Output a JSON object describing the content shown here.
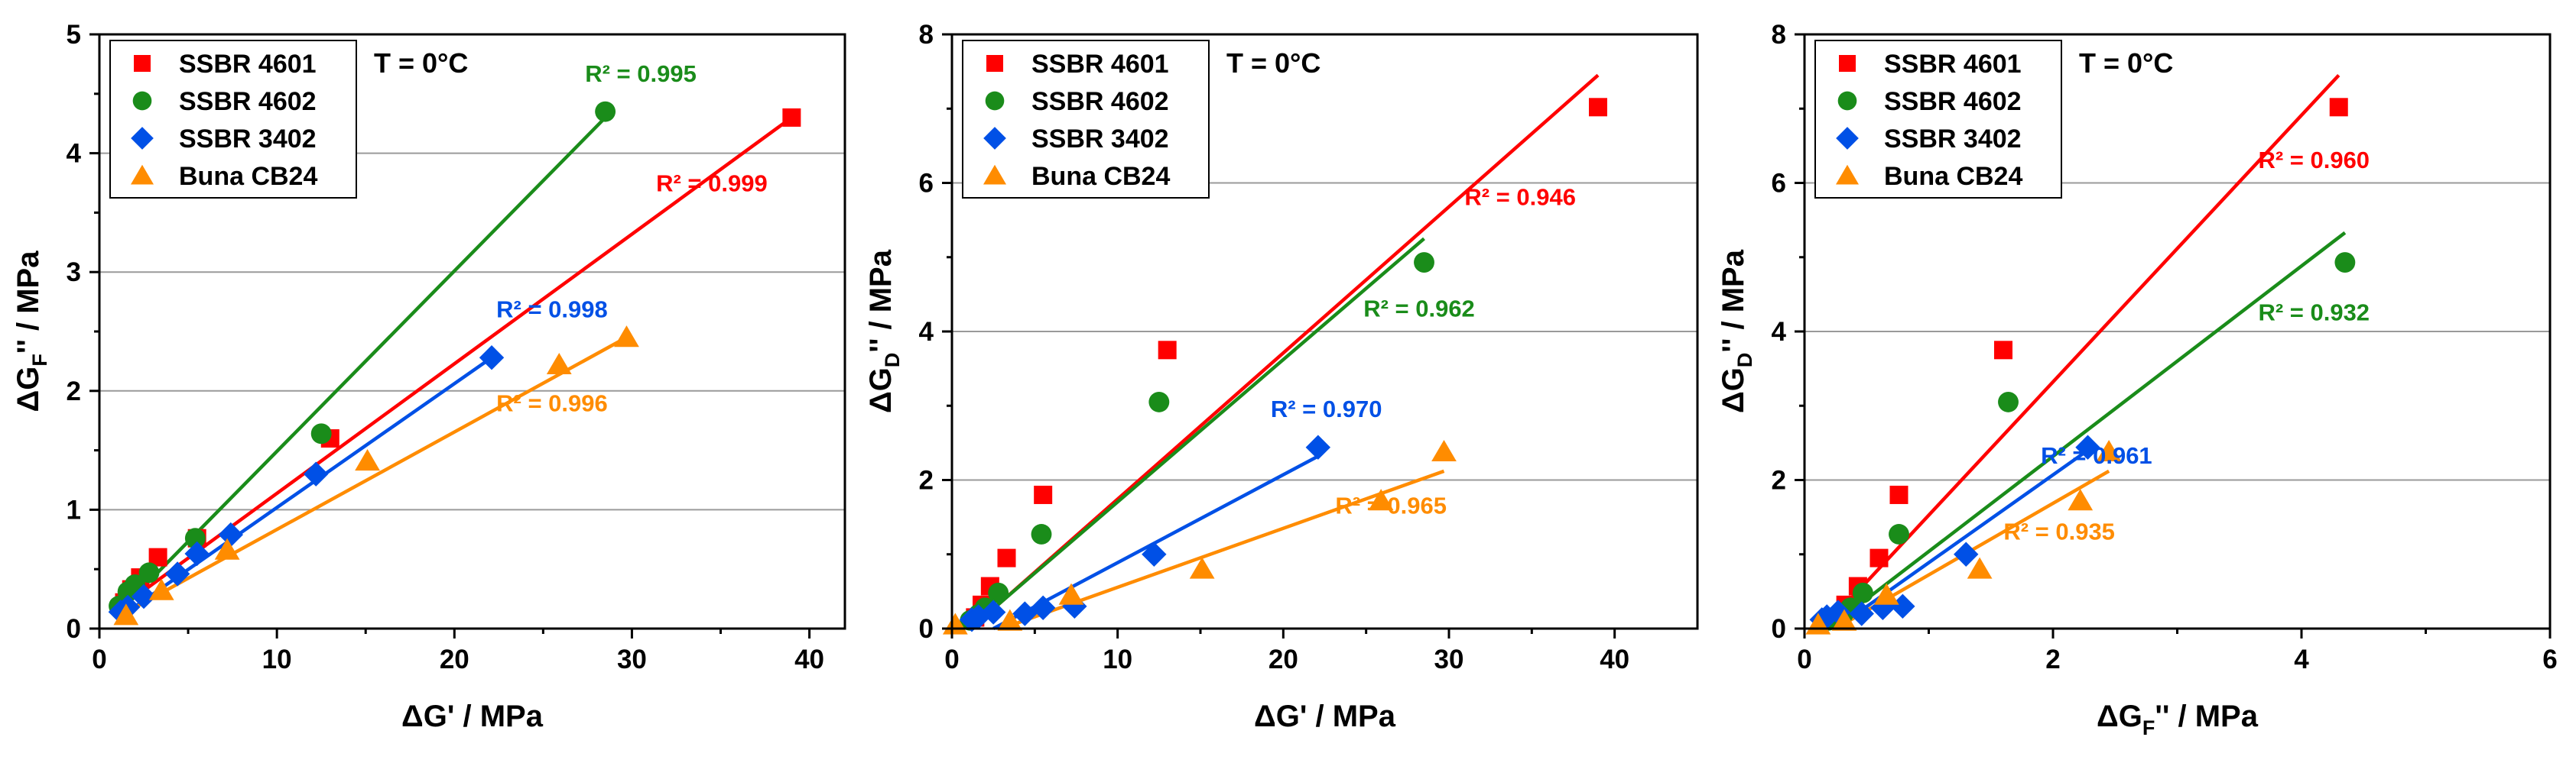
{
  "chart_data": [
    {
      "type": "scatter",
      "title": "",
      "xlabel": "ΔG' / MPa",
      "ylabel": {
        "base": "ΔG",
        "sub": "F",
        "tail": "'' / MPa"
      },
      "xlim": [
        0,
        42
      ],
      "ylim": [
        0,
        5
      ],
      "xticks": [
        0,
        10,
        20,
        30,
        40
      ],
      "yticks": [
        0,
        1,
        2,
        3,
        4,
        5
      ],
      "grid": "horizontal",
      "legend_position": "top-left",
      "annotation": "T = 0°C",
      "series": [
        {
          "name": "SSBR 4601",
          "color": "#ff0000",
          "marker": "square",
          "x": [
            1.4,
            1.8,
            2.3,
            3.3,
            5.5,
            13,
            39
          ],
          "y": [
            0.22,
            0.33,
            0.43,
            0.6,
            0.76,
            1.6,
            4.3
          ],
          "fit": [
            [
              1.4,
              0.2
            ],
            [
              39,
              4.3
            ]
          ],
          "r2": "R² = 0.999"
        },
        {
          "name": "SSBR 4602",
          "color": "#1a8c1a",
          "marker": "circle",
          "x": [
            1.1,
            1.6,
            2.0,
            2.8,
            5.4,
            12.5,
            28.5
          ],
          "y": [
            0.19,
            0.31,
            0.37,
            0.47,
            0.76,
            1.64,
            4.35
          ],
          "fit": [
            [
              1.1,
              0.14
            ],
            [
              28.5,
              4.3
            ]
          ],
          "r2": "R² = 0.995"
        },
        {
          "name": "SSBR 3402",
          "color": "#0050e6",
          "marker": "diamond",
          "x": [
            1.2,
            1.6,
            2.5,
            4.4,
            5.5,
            7.4,
            12.2,
            22.1
          ],
          "y": [
            0.14,
            0.18,
            0.27,
            0.46,
            0.63,
            0.79,
            1.3,
            2.28
          ],
          "fit": [
            [
              1.0,
              0.08
            ],
            [
              22.1,
              2.28
            ]
          ],
          "r2": "R² = 0.998"
        },
        {
          "name": "Buna CB24",
          "color": "#ff8c00",
          "marker": "triangle",
          "x": [
            1.5,
            3.5,
            7.2,
            15.1,
            25.9,
            29.7
          ],
          "y": [
            0.11,
            0.32,
            0.66,
            1.41,
            2.22,
            2.45
          ],
          "fit": [
            [
              1.3,
              0.12
            ],
            [
              29.7,
              2.45
            ]
          ],
          "r2": "R² = 0.996"
        }
      ],
      "r2_labels": [
        {
          "series": 1,
          "x": 30.5,
          "y": 4.6
        },
        {
          "series": 0,
          "x": 34.5,
          "y": 3.68
        },
        {
          "series": 2,
          "x": 25.5,
          "y": 2.62
        },
        {
          "series": 3,
          "x": 25.5,
          "y": 1.83
        }
      ]
    },
    {
      "type": "scatter",
      "title": "",
      "xlabel": "ΔG' / MPa",
      "ylabel": {
        "base": "ΔG",
        "sub": "D",
        "tail": "'' / MPa"
      },
      "xlim": [
        0,
        45
      ],
      "ylim": [
        0,
        8
      ],
      "xticks": [
        0,
        10,
        20,
        30,
        40
      ],
      "yticks": [
        0,
        2,
        4,
        6,
        8
      ],
      "grid": "horizontal",
      "legend_position": "top-left",
      "annotation": "T = 0°C",
      "series": [
        {
          "name": "SSBR 4601",
          "color": "#ff0000",
          "marker": "square",
          "x": [
            1.4,
            1.8,
            2.3,
            3.3,
            5.5,
            13,
            39
          ],
          "y": [
            0.15,
            0.32,
            0.57,
            0.95,
            1.8,
            3.75,
            7.02
          ],
          "fit": [
            [
              1.4,
              0.05
            ],
            [
              39,
              7.45
            ]
          ],
          "r2": "R² = 0.946"
        },
        {
          "name": "SSBR 4602",
          "color": "#1a8c1a",
          "marker": "circle",
          "x": [
            1.1,
            1.6,
            2.0,
            2.8,
            5.4,
            12.5,
            28.5
          ],
          "y": [
            0.11,
            0.19,
            0.28,
            0.48,
            1.27,
            3.05,
            4.93
          ],
          "fit": [
            [
              1.1,
              0.0
            ],
            [
              28.5,
              5.25
            ]
          ],
          "r2": "R² = 0.962"
        },
        {
          "name": "SSBR 3402",
          "color": "#0050e6",
          "marker": "diamond",
          "x": [
            1.2,
            1.6,
            2.5,
            4.4,
            5.5,
            7.4,
            12.2,
            22.1
          ],
          "y": [
            0.12,
            0.16,
            0.22,
            0.2,
            0.28,
            0.3,
            1.0,
            2.44
          ],
          "fit": [
            [
              2.5,
              0.0
            ],
            [
              22.1,
              2.32
            ]
          ],
          "r2": "R² = 0.970"
        },
        {
          "name": "Buna CB24",
          "color": "#ff8c00",
          "marker": "triangle",
          "x": [
            0.2,
            3.5,
            7.2,
            15.1,
            25.9,
            29.7
          ],
          "y": [
            0.05,
            0.1,
            0.45,
            0.8,
            1.72,
            2.38
          ],
          "fit": [
            [
              3.0,
              0.0
            ],
            [
              29.7,
              2.12
            ]
          ],
          "r2": "R² = 0.965"
        }
      ],
      "r2_labels": [
        {
          "series": 0,
          "x": 34.3,
          "y": 5.7
        },
        {
          "series": 1,
          "x": 28.2,
          "y": 4.2
        },
        {
          "series": 2,
          "x": 22.6,
          "y": 2.85
        },
        {
          "series": 3,
          "x": 26.5,
          "y": 1.55
        }
      ]
    },
    {
      "type": "scatter",
      "title": "",
      "xlabel": {
        "base": "ΔG",
        "sub": "F",
        "tail": "'' / MPa"
      },
      "ylabel": {
        "base": "ΔG",
        "sub": "D",
        "tail": "'' / MPa"
      },
      "xlim": [
        0,
        6
      ],
      "ylim": [
        0,
        8
      ],
      "xticks": [
        0,
        2,
        4,
        6
      ],
      "yticks": [
        0,
        2,
        4,
        6,
        8
      ],
      "grid": "horizontal",
      "legend_position": "top-left",
      "annotation": "T = 0°C",
      "series": [
        {
          "name": "SSBR 4601",
          "color": "#ff0000",
          "marker": "square",
          "x": [
            0.22,
            0.33,
            0.43,
            0.6,
            0.76,
            1.6,
            4.3
          ],
          "y": [
            0.15,
            0.32,
            0.57,
            0.95,
            1.8,
            3.75,
            7.02
          ],
          "fit": [
            [
              0.15,
              0.0
            ],
            [
              4.3,
              7.45
            ]
          ],
          "r2": "R² = 0.960"
        },
        {
          "name": "SSBR 4602",
          "color": "#1a8c1a",
          "marker": "circle",
          "x": [
            0.19,
            0.31,
            0.37,
            0.47,
            0.76,
            1.64,
            4.35
          ],
          "y": [
            0.11,
            0.19,
            0.28,
            0.48,
            1.27,
            3.05,
            4.93
          ],
          "fit": [
            [
              0.19,
              0.0
            ],
            [
              4.35,
              5.33
            ]
          ],
          "r2": "R² = 0.932"
        },
        {
          "name": "SSBR 3402",
          "color": "#0050e6",
          "marker": "diamond",
          "x": [
            0.14,
            0.18,
            0.27,
            0.46,
            0.63,
            0.79,
            1.3,
            2.28
          ],
          "y": [
            0.12,
            0.16,
            0.22,
            0.2,
            0.28,
            0.3,
            1.0,
            2.44
          ],
          "fit": [
            [
              0.25,
              0.0
            ],
            [
              2.28,
              2.4
            ]
          ],
          "r2": "R² = 0.961"
        },
        {
          "name": "Buna CB24",
          "color": "#ff8c00",
          "marker": "triangle",
          "x": [
            0.11,
            0.32,
            0.66,
            1.41,
            2.22,
            2.45
          ],
          "y": [
            0.05,
            0.1,
            0.45,
            0.8,
            1.72,
            2.38
          ],
          "fit": [
            [
              0.25,
              0.0
            ],
            [
              2.45,
              2.12
            ]
          ],
          "r2": "R² = 0.935"
        }
      ],
      "r2_labels": [
        {
          "series": 0,
          "x": 4.1,
          "y": 6.2
        },
        {
          "series": 1,
          "x": 4.1,
          "y": 4.15
        },
        {
          "series": 2,
          "x": 2.35,
          "y": 2.22
        },
        {
          "series": 3,
          "x": 2.05,
          "y": 1.2
        }
      ]
    }
  ]
}
